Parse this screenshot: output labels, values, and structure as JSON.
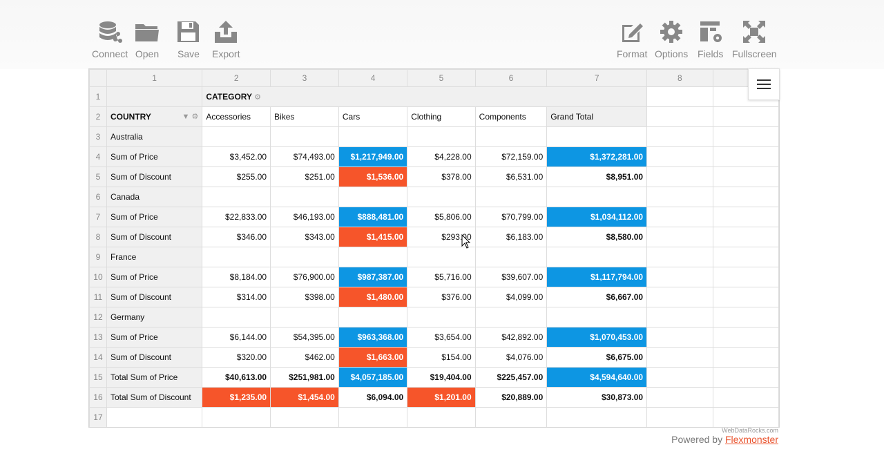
{
  "toolbar": {
    "left": [
      {
        "label": "Connect",
        "icon": "database-icon"
      },
      {
        "label": "Open",
        "icon": "folder-icon"
      },
      {
        "label": "Save",
        "icon": "floppy-disk-icon"
      },
      {
        "label": "Export",
        "icon": "export-icon"
      }
    ],
    "right": [
      {
        "label": "Format",
        "icon": "pencil-edit-icon"
      },
      {
        "label": "Options",
        "icon": "gear-icon"
      },
      {
        "label": "Fields",
        "icon": "fields-icon"
      },
      {
        "label": "Fullscreen",
        "icon": "fullscreen-icon"
      }
    ]
  },
  "grid": {
    "column_headers": [
      "1",
      "2",
      "3",
      "4",
      "5",
      "6",
      "7",
      "8"
    ],
    "row_numbers": [
      "1",
      "2",
      "3",
      "4",
      "5",
      "6",
      "7",
      "8",
      "9",
      "10",
      "11",
      "12",
      "13",
      "14",
      "15",
      "16",
      "17"
    ],
    "category_caption": "CATEGORY",
    "country_caption": "COUNTRY",
    "categories": [
      "Accessories",
      "Bikes",
      "Cars",
      "Clothing",
      "Components",
      "Grand Total"
    ],
    "rows": [
      {
        "label": "Australia",
        "type": "group"
      },
      {
        "label": "Sum of Price",
        "type": "price",
        "values": [
          "$3,452.00",
          "$74,493.00",
          "$1,217,949.00",
          "$4,228.00",
          "$72,159.00",
          "$1,372,281.00"
        ]
      },
      {
        "label": "Sum of Discount",
        "type": "discount",
        "values": [
          "$255.00",
          "$251.00",
          "$1,536.00",
          "$378.00",
          "$6,531.00",
          "$8,951.00"
        ]
      },
      {
        "label": "Canada",
        "type": "group"
      },
      {
        "label": "Sum of Price",
        "type": "price",
        "values": [
          "$22,833.00",
          "$46,193.00",
          "$888,481.00",
          "$5,806.00",
          "$70,799.00",
          "$1,034,112.00"
        ]
      },
      {
        "label": "Sum of Discount",
        "type": "discount",
        "values": [
          "$346.00",
          "$343.00",
          "$1,415.00",
          "$293.00",
          "$6,183.00",
          "$8,580.00"
        ]
      },
      {
        "label": "France",
        "type": "group"
      },
      {
        "label": "Sum of Price",
        "type": "price",
        "values": [
          "$8,184.00",
          "$76,900.00",
          "$987,387.00",
          "$5,716.00",
          "$39,607.00",
          "$1,117,794.00"
        ]
      },
      {
        "label": "Sum of Discount",
        "type": "discount",
        "values": [
          "$314.00",
          "$398.00",
          "$1,480.00",
          "$376.00",
          "$4,099.00",
          "$6,667.00"
        ]
      },
      {
        "label": "Germany",
        "type": "group"
      },
      {
        "label": "Sum of Price",
        "type": "price",
        "values": [
          "$6,144.00",
          "$54,395.00",
          "$963,368.00",
          "$3,654.00",
          "$42,892.00",
          "$1,070,453.00"
        ]
      },
      {
        "label": "Sum of Discount",
        "type": "discount",
        "values": [
          "$320.00",
          "$462.00",
          "$1,663.00",
          "$154.00",
          "$4,076.00",
          "$6,675.00"
        ]
      },
      {
        "label": "Total Sum of Price",
        "type": "total_price",
        "values": [
          "$40,613.00",
          "$251,981.00",
          "$4,057,185.00",
          "$19,404.00",
          "$225,457.00",
          "$4,594,640.00"
        ]
      },
      {
        "label": "Total Sum of Discount",
        "type": "total_discount",
        "values": [
          "$1,235.00",
          "$1,454.00",
          "$6,094.00",
          "$1,201.00",
          "$20,889.00",
          "$30,873.00"
        ]
      }
    ],
    "highlights": {
      "price": [
        false,
        false,
        true,
        false,
        false,
        true
      ],
      "discount": [
        false,
        false,
        true,
        false,
        false,
        false
      ],
      "total_price": [
        false,
        false,
        true,
        false,
        false,
        true
      ],
      "total_discount": [
        true,
        true,
        false,
        true,
        false,
        false
      ]
    },
    "colors": {
      "blue": "#0d96e3",
      "red": "#f6552a"
    }
  },
  "footer": {
    "credit": "WebDataRocks.com",
    "powered_by": "Powered by",
    "link": "Flexmonster"
  }
}
